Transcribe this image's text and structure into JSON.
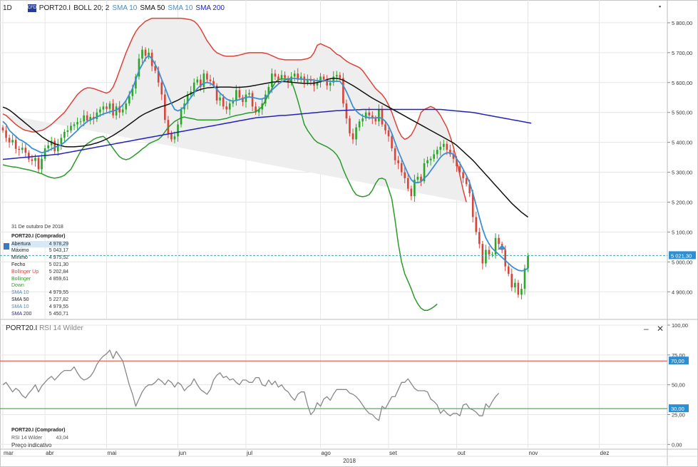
{
  "toolbar": {
    "period": "1D",
    "logo_text": "CFD",
    "instrument": "PORT20.I",
    "indicators": [
      {
        "label": "BOLL 20; 2",
        "color": "#222222"
      },
      {
        "label": "SMA 10",
        "color": "#3d8fd1"
      },
      {
        "label": "SMA 50",
        "color": "#111111"
      },
      {
        "label": "SMA 10",
        "color": "#3d8fd1"
      },
      {
        "label": "SMA 200",
        "color": "#2222bb"
      }
    ]
  },
  "main_pane": {
    "controls": {
      "minimize": "▪"
    },
    "last_price_label": "5 021,30"
  },
  "rsi_pane": {
    "instrument": "PORT20.I",
    "indicator": "RSI 14 Wilder",
    "controls": {
      "minimize": "–",
      "close": "✕"
    },
    "upper_label": "70,00",
    "lower_label": "30,00"
  },
  "info_box": {
    "date": "31 De outubro De 2018",
    "header": "PORT20.I (Comprador)",
    "rows": [
      {
        "k": "Abertura",
        "v": "4 978,29",
        "color": "#222222"
      },
      {
        "k": "Máximo",
        "v": "5 043,17",
        "color": "#222222"
      },
      {
        "k": "Mínimo",
        "v": "4 975,52",
        "color": "#222222"
      },
      {
        "k": "Fecho",
        "v": "5 021,30",
        "color": "#222222"
      },
      {
        "k": "Bollinger Up",
        "v": "5 202,84",
        "color": "#d9443a"
      },
      {
        "k": "Bollinger Down",
        "v": "4 859,61",
        "color": "#2a9a2a"
      },
      {
        "k": "SMA 10",
        "v": "4 979,55",
        "color": "#3d8fd1"
      },
      {
        "k": "SMA 50",
        "v": "5 227,82",
        "color": "#222222"
      },
      {
        "k": "SMA 10",
        "v": "4 979,55",
        "color": "#3d8fd1"
      },
      {
        "k": "SMA 200",
        "v": "5 450,71",
        "color": "#2222bb"
      }
    ]
  },
  "rsi_info": {
    "header": "PORT20.I (Comprador)",
    "row": {
      "k": "RSI 14 Wilder",
      "v": "43,04"
    }
  },
  "footer": {
    "preco": "Preço indicativo",
    "year": "2018"
  },
  "chart_data": {
    "type": "candlestick",
    "price_axis": {
      "ticks": [
        4900,
        5000,
        5100,
        5200,
        5300,
        5400,
        5500,
        5600,
        5700,
        5800
      ],
      "tick_labels": [
        "4 900,00",
        "5 000,00",
        "5 100,00",
        "5 200,00",
        "5 300,00",
        "5 400,00",
        "5 500,00",
        "5 600,00",
        "5 700,00",
        "5 800,00"
      ],
      "ylim": [
        4810,
        5838
      ]
    },
    "rsi_axis": {
      "ticks": [
        0,
        25,
        50,
        75,
        100
      ],
      "tick_labels": [
        "0,00",
        "25,00",
        "50,00",
        "75,00",
        "100,00"
      ],
      "ylim": [
        -4,
        100
      ],
      "upper": 70,
      "lower": 30
    },
    "x_axis": {
      "months": [
        "mar",
        "abr",
        "mai",
        "jun",
        "jul",
        "ago",
        "set",
        "out",
        "nov",
        "dez"
      ],
      "year": "2018",
      "xlim": [
        0,
        205
      ]
    },
    "months_idx": [
      0,
      13,
      32,
      54,
      75,
      98,
      119,
      140,
      162,
      184
    ],
    "close": [
      5440,
      5415,
      5400,
      5408,
      5378,
      5375,
      5382,
      5365,
      5343,
      5338,
      5348,
      5310,
      5345,
      5380,
      5390,
      5405,
      5370,
      5395,
      5415,
      5435,
      5440,
      5455,
      5460,
      5468,
      5470,
      5490,
      5473,
      5485,
      5478,
      5500,
      5510,
      5520,
      5512,
      5530,
      5490,
      5520,
      5500,
      5510,
      5530,
      5555,
      5580,
      5620,
      5680,
      5710,
      5690,
      5700,
      5655,
      5640,
      5600,
      5560,
      5475,
      5430,
      5410,
      5420,
      5460,
      5510,
      5530,
      5560,
      5570,
      5600,
      5610,
      5585,
      5630,
      5610,
      5605,
      5590,
      5540,
      5550,
      5520,
      5510,
      5530,
      5540,
      5575,
      5550,
      5535,
      5560,
      5565,
      5520,
      5500,
      5510,
      5530,
      5560,
      5585,
      5630,
      5620,
      5610,
      5625,
      5615,
      5600,
      5620,
      5630,
      5610,
      5620,
      5600,
      5610,
      5605,
      5590,
      5600,
      5620,
      5610,
      5590,
      5600,
      5620,
      5625,
      5615,
      5530,
      5480,
      5430,
      5410,
      5450,
      5470,
      5480,
      5500,
      5490,
      5480,
      5470,
      5510,
      5460,
      5440,
      5420,
      5380,
      5340,
      5330,
      5300,
      5280,
      5245,
      5220,
      5275,
      5285,
      5270,
      5330,
      5340,
      5345,
      5360,
      5375,
      5385,
      5395,
      5375,
      5360,
      5345,
      5320,
      5300,
      5280,
      5260,
      5230,
      5150,
      5100,
      5060,
      4995,
      5040,
      5025,
      5025,
      5080,
      5060,
      5040,
      4985,
      4960,
      4915,
      4930,
      4890,
      4910,
      4978,
      5021
    ],
    "sma10": [
      5470,
      5460,
      5440,
      5430,
      5420,
      5410,
      5405,
      5398,
      5390,
      5380,
      5375,
      5370,
      5365,
      5368,
      5372,
      5378,
      5383,
      5388,
      5392,
      5400,
      5410,
      5420,
      5430,
      5440,
      5452,
      5460,
      5470,
      5475,
      5480,
      5485,
      5490,
      5495,
      5498,
      5502,
      5505,
      5508,
      5515,
      5525,
      5540,
      5560,
      5580,
      5610,
      5640,
      5660,
      5680,
      5690,
      5680,
      5660,
      5640,
      5610,
      5585,
      5555,
      5530,
      5510,
      5505,
      5510,
      5520,
      5535,
      5550,
      5565,
      5580,
      5590,
      5598,
      5600,
      5598,
      5590,
      5578,
      5565,
      5555,
      5545,
      5540,
      5538,
      5540,
      5543,
      5547,
      5550,
      5552,
      5550,
      5548,
      5545,
      5545,
      5550,
      5560,
      5575,
      5585,
      5595,
      5602,
      5608,
      5612,
      5614,
      5614,
      5612,
      5612,
      5610,
      5610,
      5610,
      5608,
      5606,
      5606,
      5606,
      5606,
      5604,
      5604,
      5604,
      5604,
      5590,
      5570,
      5545,
      5520,
      5505,
      5495,
      5488,
      5485,
      5482,
      5482,
      5482,
      5483,
      5480,
      5470,
      5455,
      5430,
      5400,
      5370,
      5345,
      5320,
      5295,
      5275,
      5265,
      5265,
      5268,
      5280,
      5290,
      5305,
      5320,
      5335,
      5350,
      5360,
      5365,
      5365,
      5360,
      5345,
      5330,
      5310,
      5290,
      5265,
      5230,
      5190,
      5150,
      5110,
      5080,
      5060,
      5045,
      5035,
      5025,
      5015,
      5005,
      4995,
      4985,
      4978,
      4972,
      4970,
      4972,
      4979
    ],
    "sma50": [
      5518,
      5514,
      5508,
      5500,
      5491,
      5482,
      5473,
      5464,
      5455,
      5446,
      5437,
      5428,
      5419,
      5412,
      5405,
      5400,
      5395,
      5392,
      5389,
      5386,
      5385,
      5385,
      5385,
      5386,
      5387,
      5388,
      5390,
      5392,
      5395,
      5398,
      5402,
      5406,
      5411,
      5417,
      5423,
      5430,
      5437,
      5444,
      5452,
      5460,
      5468,
      5476,
      5484,
      5491,
      5497,
      5502,
      5507,
      5512,
      5516,
      5520,
      5523,
      5527,
      5531,
      5536,
      5541,
      5547,
      5553,
      5558,
      5563,
      5568,
      5573,
      5577,
      5580,
      5582,
      5583,
      5584,
      5584,
      5585,
      5585,
      5585,
      5585,
      5584,
      5584,
      5584,
      5585,
      5586,
      5587,
      5589,
      5591,
      5593,
      5595,
      5597,
      5599,
      5601,
      5602,
      5603,
      5603,
      5603,
      5602,
      5601,
      5600,
      5599,
      5598,
      5597,
      5597,
      5597,
      5598,
      5600,
      5603,
      5606,
      5610,
      5613,
      5614,
      5614,
      5612,
      5608,
      5602,
      5596,
      5590,
      5583,
      5576,
      5569,
      5562,
      5555,
      5548,
      5542,
      5536,
      5530,
      5524,
      5518,
      5512,
      5506,
      5500,
      5494,
      5488,
      5482,
      5476,
      5470,
      5464,
      5458,
      5452,
      5446,
      5440,
      5434,
      5428,
      5422,
      5416,
      5410,
      5404,
      5398,
      5390,
      5380,
      5370,
      5360,
      5350,
      5340,
      5328,
      5316,
      5304,
      5292,
      5280,
      5268,
      5256,
      5244,
      5232,
      5220,
      5208,
      5196,
      5186,
      5176,
      5166,
      5158,
      5150
    ],
    "sma200": [
      5343,
      5344,
      5345,
      5346,
      5347,
      5348,
      5349,
      5350,
      5351,
      5352,
      5353,
      5354,
      5355,
      5356,
      5357,
      5358,
      5359,
      5360,
      5362,
      5364,
      5366,
      5368,
      5370,
      5372,
      5374,
      5376,
      5378,
      5380,
      5382,
      5384,
      5386,
      5388,
      5390,
      5392,
      5394,
      5396,
      5398,
      5400,
      5402,
      5404,
      5406,
      5408,
      5410,
      5412,
      5414,
      5416,
      5418,
      5420,
      5422,
      5424,
      5426,
      5428,
      5430,
      5432,
      5434,
      5436,
      5438,
      5440,
      5442,
      5444,
      5446,
      5448,
      5450,
      5452,
      5454,
      5456,
      5458,
      5460,
      5462,
      5464,
      5466,
      5468,
      5470,
      5472,
      5474,
      5476,
      5478,
      5480,
      5482,
      5483,
      5484,
      5485,
      5486,
      5487,
      5488,
      5489,
      5490,
      5490,
      5491,
      5492,
      5493,
      5494,
      5495,
      5496,
      5497,
      5498,
      5499,
      5500,
      5501,
      5502,
      5503,
      5504,
      5505,
      5506,
      5506,
      5507,
      5507,
      5508,
      5508,
      5509,
      5509,
      5510,
      5510,
      5510,
      5510,
      5510,
      5510,
      5510,
      5510,
      5510,
      5510,
      5510,
      5510,
      5510,
      5510,
      5510,
      5510,
      5510,
      5510,
      5510,
      5510,
      5510,
      5510,
      5510,
      5510,
      5510,
      5509,
      5508,
      5507,
      5506,
      5505,
      5504,
      5503,
      5502,
      5501,
      5500,
      5498,
      5496,
      5494,
      5492,
      5490,
      5488,
      5486,
      5484,
      5482,
      5480,
      5478,
      5476,
      5474,
      5472,
      5470,
      5468,
      5466,
      5464
    ],
    "boll_up": [
      5495,
      5490,
      5480,
      5470,
      5460,
      5452,
      5445,
      5440,
      5438,
      5435,
      5435,
      5438,
      5440,
      5445,
      5452,
      5460,
      5470,
      5480,
      5490,
      5500,
      5515,
      5530,
      5545,
      5560,
      5570,
      5578,
      5582,
      5582,
      5580,
      5576,
      5572,
      5568,
      5565,
      5570,
      5585,
      5610,
      5640,
      5670,
      5700,
      5725,
      5750,
      5770,
      5785,
      5795,
      5805,
      5810,
      5815,
      5815,
      5815,
      5815,
      5815,
      5815,
      5815,
      5815,
      5815,
      5815,
      5814,
      5812,
      5810,
      5805,
      5795,
      5780,
      5760,
      5740,
      5725,
      5710,
      5700,
      5695,
      5690,
      5688,
      5688,
      5688,
      5690,
      5692,
      5695,
      5698,
      5700,
      5700,
      5700,
      5700,
      5700,
      5698,
      5695,
      5690,
      5685,
      5680,
      5678,
      5676,
      5676,
      5676,
      5676,
      5676,
      5676,
      5678,
      5680,
      5685,
      5700,
      5725,
      5730,
      5725,
      5720,
      5715,
      5705,
      5695,
      5690,
      5680,
      5672,
      5665,
      5660,
      5655,
      5650,
      5640,
      5625,
      5610,
      5595,
      5580,
      5570,
      5560,
      5545,
      5525,
      5500,
      5470,
      5440,
      5420,
      5410,
      5415,
      5425,
      5445,
      5470,
      5500,
      5510,
      5515,
      5520,
      5515,
      5505,
      5490,
      5470,
      5450,
      5420,
      5385,
      5340,
      5290,
      5240,
      5200
    ],
    "boll_dn": [
      5325,
      5322,
      5320,
      5318,
      5317,
      5315,
      5312,
      5310,
      5308,
      5305,
      5302,
      5298,
      5295,
      5290,
      5285,
      5282,
      5280,
      5282,
      5285,
      5290,
      5300,
      5310,
      5330,
      5350,
      5370,
      5385,
      5395,
      5402,
      5410,
      5415,
      5418,
      5420,
      5410,
      5395,
      5380,
      5365,
      5352,
      5345,
      5342,
      5345,
      5352,
      5360,
      5368,
      5378,
      5385,
      5395,
      5400,
      5405,
      5410,
      5420,
      5435,
      5450,
      5460,
      5470,
      5476,
      5482,
      5485,
      5482,
      5480,
      5478,
      5475,
      5475,
      5475,
      5475,
      5475,
      5475,
      5475,
      5476,
      5478,
      5480,
      5484,
      5487,
      5490,
      5492,
      5494,
      5497,
      5499,
      5500,
      5502,
      5510,
      5520,
      5540,
      5560,
      5580,
      5600,
      5610,
      5612,
      5612,
      5612,
      5605,
      5575,
      5540,
      5500,
      5460,
      5440,
      5425,
      5410,
      5400,
      5395,
      5390,
      5385,
      5378,
      5370,
      5358,
      5340,
      5310,
      5285,
      5262,
      5240,
      5225,
      5220,
      5218,
      5220,
      5225,
      5240,
      5262,
      5278,
      5280,
      5275,
      5245,
      5210,
      5140,
      5060,
      5000,
      4960,
      4935,
      4910,
      4880,
      4860,
      4845,
      4838,
      4838,
      4843,
      4850,
      4859
    ],
    "rsi": [
      50,
      52,
      48,
      44,
      47,
      45,
      41,
      39,
      43,
      46,
      50,
      44,
      49,
      52,
      55,
      57,
      54,
      57,
      60,
      62,
      62,
      62,
      65,
      60,
      56,
      54,
      55,
      57,
      61,
      67,
      71,
      74,
      76,
      79,
      72,
      78,
      74,
      70,
      60,
      50,
      42,
      32,
      38,
      44,
      48,
      50,
      50,
      52,
      55,
      53,
      50,
      54,
      52,
      48,
      52,
      50,
      45,
      48,
      50,
      55,
      50,
      46,
      44,
      42,
      46,
      54,
      58,
      60,
      56,
      57,
      54,
      55,
      52,
      50,
      54,
      54,
      52,
      52,
      56,
      56,
      50,
      49,
      54,
      50,
      53,
      48,
      50,
      46,
      44,
      40,
      37,
      42,
      44,
      44,
      33,
      25,
      28,
      35,
      32,
      38,
      40,
      37,
      42,
      46,
      46,
      46,
      46,
      43,
      42,
      40,
      37,
      33,
      29,
      26,
      25,
      22,
      20,
      32,
      30,
      35,
      40,
      40,
      46,
      52,
      52,
      55,
      51,
      47,
      45,
      45,
      45,
      44,
      38,
      36,
      33,
      26,
      29,
      26,
      24,
      26,
      26,
      24,
      33,
      34,
      30,
      29,
      27,
      24,
      24,
      34,
      31,
      36,
      40,
      43
    ],
    "last_price": 5021.3
  }
}
